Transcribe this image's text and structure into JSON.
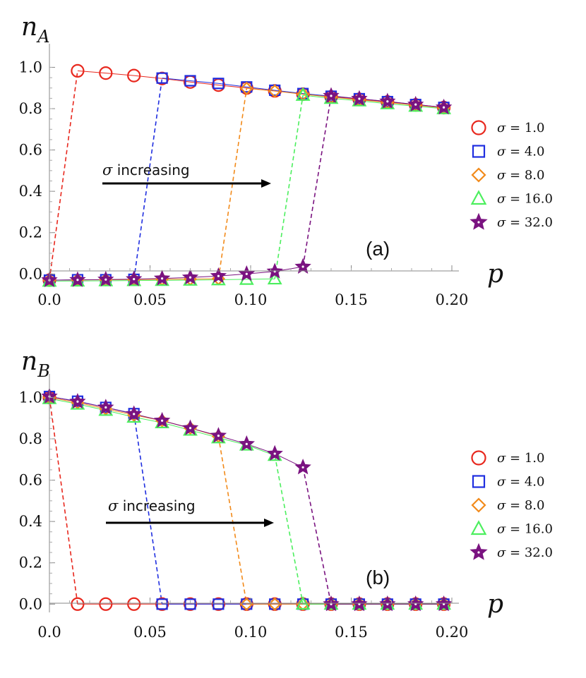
{
  "colors": {
    "s1": "#e8281e",
    "s4": "#1f2ee0",
    "s8": "#f28a1a",
    "s16": "#4cef5e",
    "s32": "#7a1380"
  },
  "legend_text": {
    "sigma": "σ",
    "eq": " = "
  },
  "chart_data": [
    {
      "id": "a",
      "type": "scatter",
      "panel_label": "(a)",
      "ylabel_base": "n",
      "ylabel_sub": "A",
      "xlabel": "p",
      "annotation_sigma": "σ",
      "annotation_text": " increasing",
      "xlim": [
        0,
        0.2
      ],
      "ylim": [
        -0.04,
        1.08
      ],
      "xticks": [
        0.0,
        0.05,
        0.1,
        0.15,
        0.2
      ],
      "xtick_labels": [
        "0.0",
        "0.05",
        "0.10",
        "0.15",
        "0.20"
      ],
      "yticks": [
        0.0,
        0.2,
        0.4,
        0.6,
        0.8,
        1.0
      ],
      "ytick_labels": [
        "0.0",
        "0.2",
        "0.4",
        "0.6",
        "0.8",
        "1.0"
      ],
      "series": [
        {
          "name": "σ = 1.0",
          "sigma": "1.0",
          "marker": "circle",
          "color_key": "s1",
          "lower": [
            [
              0.0,
              -0.03
            ]
          ],
          "upper": [
            [
              0.014,
              0.983
            ],
            [
              0.028,
              0.972
            ],
            [
              0.042,
              0.96
            ],
            [
              0.056,
              0.946
            ],
            [
              0.07,
              0.929
            ],
            [
              0.084,
              0.914
            ],
            [
              0.098,
              0.9
            ],
            [
              0.112,
              0.886
            ],
            [
              0.126,
              0.87
            ],
            [
              0.14,
              0.857
            ],
            [
              0.154,
              0.845
            ],
            [
              0.168,
              0.832
            ],
            [
              0.182,
              0.818
            ],
            [
              0.196,
              0.805
            ]
          ],
          "transition": [
            [
              0.0,
              -0.03
            ],
            [
              0.014,
              0.983
            ]
          ]
        },
        {
          "name": "σ = 4.0",
          "sigma": "4.0",
          "marker": "square",
          "color_key": "s4",
          "lower": [
            [
              0.0,
              -0.03
            ],
            [
              0.014,
              -0.028
            ],
            [
              0.028,
              -0.028
            ],
            [
              0.042,
              -0.026
            ]
          ],
          "upper": [
            [
              0.056,
              0.948
            ],
            [
              0.07,
              0.935
            ],
            [
              0.084,
              0.922
            ],
            [
              0.098,
              0.905
            ],
            [
              0.112,
              0.889
            ],
            [
              0.126,
              0.873
            ],
            [
              0.14,
              0.86
            ],
            [
              0.154,
              0.848
            ],
            [
              0.168,
              0.834
            ],
            [
              0.182,
              0.82
            ],
            [
              0.196,
              0.806
            ]
          ],
          "transition": [
            [
              0.042,
              -0.026
            ],
            [
              0.056,
              0.948
            ]
          ]
        },
        {
          "name": "σ = 8.0",
          "sigma": "8.0",
          "marker": "diamond",
          "color_key": "s8",
          "lower": [
            [
              0.0,
              -0.03
            ],
            [
              0.014,
              -0.029
            ],
            [
              0.028,
              -0.028
            ],
            [
              0.042,
              -0.027
            ],
            [
              0.056,
              -0.026
            ],
            [
              0.07,
              -0.025
            ],
            [
              0.084,
              -0.023
            ]
          ],
          "upper": [
            [
              0.098,
              0.898
            ],
            [
              0.112,
              0.885
            ],
            [
              0.126,
              0.87
            ],
            [
              0.14,
              0.856
            ],
            [
              0.154,
              0.843
            ],
            [
              0.168,
              0.83
            ],
            [
              0.182,
              0.817
            ],
            [
              0.196,
              0.804
            ]
          ],
          "transition": [
            [
              0.084,
              -0.023
            ],
            [
              0.098,
              0.898
            ]
          ]
        },
        {
          "name": "σ = 16.0",
          "sigma": "16.0",
          "marker": "triangle",
          "color_key": "s16",
          "lower": [
            [
              0.0,
              -0.035
            ],
            [
              0.014,
              -0.034
            ],
            [
              0.028,
              -0.033
            ],
            [
              0.042,
              -0.032
            ],
            [
              0.056,
              -0.031
            ],
            [
              0.07,
              -0.03
            ],
            [
              0.084,
              -0.028
            ],
            [
              0.098,
              -0.026
            ],
            [
              0.112,
              -0.024
            ]
          ],
          "upper": [
            [
              0.126,
              0.865
            ],
            [
              0.14,
              0.85
            ],
            [
              0.154,
              0.838
            ],
            [
              0.168,
              0.824
            ],
            [
              0.182,
              0.812
            ],
            [
              0.196,
              0.8
            ]
          ],
          "transition": [
            [
              0.112,
              -0.024
            ],
            [
              0.126,
              0.865
            ]
          ]
        },
        {
          "name": "σ = 32.0",
          "sigma": "32.0",
          "marker": "star",
          "color_key": "s32",
          "lower": [
            [
              0.0,
              -0.03
            ],
            [
              0.014,
              -0.029
            ],
            [
              0.028,
              -0.027
            ],
            [
              0.042,
              -0.025
            ],
            [
              0.056,
              -0.022
            ],
            [
              0.07,
              -0.017
            ],
            [
              0.084,
              -0.01
            ],
            [
              0.098,
              0.0
            ],
            [
              0.112,
              0.012
            ],
            [
              0.126,
              0.035
            ]
          ],
          "upper": [
            [
              0.14,
              0.862
            ],
            [
              0.154,
              0.848
            ],
            [
              0.168,
              0.835
            ],
            [
              0.182,
              0.82
            ],
            [
              0.196,
              0.806
            ]
          ],
          "transition": [
            [
              0.126,
              0.035
            ],
            [
              0.14,
              0.862
            ]
          ]
        }
      ]
    },
    {
      "id": "b",
      "type": "scatter",
      "panel_label": "(b)",
      "ylabel_base": "n",
      "ylabel_sub": "B",
      "xlabel": "p",
      "annotation_sigma": "σ",
      "annotation_text": " increasing",
      "xlim": [
        0,
        0.2
      ],
      "ylim": [
        -0.04,
        1.08
      ],
      "xticks": [
        0.0,
        0.05,
        0.1,
        0.15,
        0.2
      ],
      "xtick_labels": [
        "0.0",
        "0.05",
        "0.10",
        "0.15",
        "0.20"
      ],
      "yticks": [
        0.0,
        0.2,
        0.4,
        0.6,
        0.8,
        1.0
      ],
      "ytick_labels": [
        "0.0",
        "0.2",
        "0.4",
        "0.6",
        "0.8",
        "1.0"
      ],
      "series": [
        {
          "name": "σ = 1.0",
          "sigma": "1.0",
          "marker": "circle",
          "color_key": "s1",
          "upper": [
            [
              0.0,
              1.0
            ]
          ],
          "lower": [
            [
              0.014,
              0.0
            ],
            [
              0.028,
              0.0
            ],
            [
              0.042,
              0.0
            ],
            [
              0.056,
              0.0
            ],
            [
              0.07,
              0.0
            ],
            [
              0.084,
              0.0
            ],
            [
              0.098,
              0.0
            ],
            [
              0.112,
              0.0
            ],
            [
              0.126,
              0.0
            ],
            [
              0.14,
              0.0
            ],
            [
              0.154,
              0.0
            ],
            [
              0.168,
              0.0
            ],
            [
              0.182,
              0.0
            ],
            [
              0.196,
              0.0
            ]
          ],
          "transition": [
            [
              0.0,
              1.0
            ],
            [
              0.014,
              0.0
            ]
          ]
        },
        {
          "name": "σ = 4.0",
          "sigma": "4.0",
          "marker": "square",
          "color_key": "s4",
          "upper": [
            [
              0.0,
              1.005
            ],
            [
              0.014,
              0.982
            ],
            [
              0.028,
              0.952
            ],
            [
              0.042,
              0.922
            ]
          ],
          "lower": [
            [
              0.056,
              0.0
            ],
            [
              0.07,
              0.0
            ],
            [
              0.084,
              0.0
            ],
            [
              0.098,
              0.0
            ],
            [
              0.112,
              0.0
            ],
            [
              0.126,
              0.0
            ],
            [
              0.14,
              0.0
            ],
            [
              0.154,
              0.0
            ],
            [
              0.168,
              0.0
            ],
            [
              0.182,
              0.0
            ],
            [
              0.196,
              0.0
            ]
          ],
          "transition": [
            [
              0.042,
              0.922
            ],
            [
              0.056,
              0.0
            ]
          ]
        },
        {
          "name": "σ = 8.0",
          "sigma": "8.0",
          "marker": "diamond",
          "color_key": "s8",
          "upper": [
            [
              0.0,
              1.0
            ],
            [
              0.014,
              0.975
            ],
            [
              0.028,
              0.945
            ],
            [
              0.042,
              0.915
            ],
            [
              0.056,
              0.888
            ],
            [
              0.07,
              0.852
            ],
            [
              0.084,
              0.812
            ]
          ],
          "lower": [
            [
              0.098,
              0.0
            ],
            [
              0.112,
              0.0
            ],
            [
              0.126,
              0.0
            ],
            [
              0.14,
              0.0
            ],
            [
              0.154,
              0.0
            ],
            [
              0.168,
              0.0
            ],
            [
              0.182,
              0.0
            ],
            [
              0.196,
              0.0
            ]
          ],
          "transition": [
            [
              0.084,
              0.812
            ],
            [
              0.098,
              0.0
            ]
          ]
        },
        {
          "name": "σ = 16.0",
          "sigma": "16.0",
          "marker": "triangle",
          "color_key": "s16",
          "upper": [
            [
              0.0,
              0.995
            ],
            [
              0.014,
              0.968
            ],
            [
              0.028,
              0.938
            ],
            [
              0.042,
              0.905
            ],
            [
              0.056,
              0.878
            ],
            [
              0.07,
              0.842
            ],
            [
              0.084,
              0.805
            ],
            [
              0.098,
              0.77
            ],
            [
              0.112,
              0.72
            ]
          ],
          "lower": [
            [
              0.126,
              0.0
            ],
            [
              0.14,
              0.0
            ],
            [
              0.154,
              0.0
            ],
            [
              0.168,
              0.0
            ],
            [
              0.182,
              0.0
            ],
            [
              0.196,
              0.0
            ]
          ],
          "transition": [
            [
              0.112,
              0.72
            ],
            [
              0.126,
              0.0
            ]
          ]
        },
        {
          "name": "σ = 32.0",
          "sigma": "32.0",
          "marker": "star",
          "color_key": "s32",
          "upper": [
            [
              0.0,
              1.005
            ],
            [
              0.014,
              0.98
            ],
            [
              0.028,
              0.952
            ],
            [
              0.042,
              0.92
            ],
            [
              0.056,
              0.888
            ],
            [
              0.07,
              0.852
            ],
            [
              0.084,
              0.815
            ],
            [
              0.098,
              0.775
            ],
            [
              0.112,
              0.728
            ],
            [
              0.126,
              0.662
            ]
          ],
          "lower": [
            [
              0.14,
              0.0
            ],
            [
              0.154,
              0.0
            ],
            [
              0.168,
              0.0
            ],
            [
              0.182,
              0.0
            ],
            [
              0.196,
              0.0
            ]
          ],
          "transition": [
            [
              0.126,
              0.662
            ],
            [
              0.14,
              0.0
            ]
          ]
        }
      ]
    }
  ]
}
